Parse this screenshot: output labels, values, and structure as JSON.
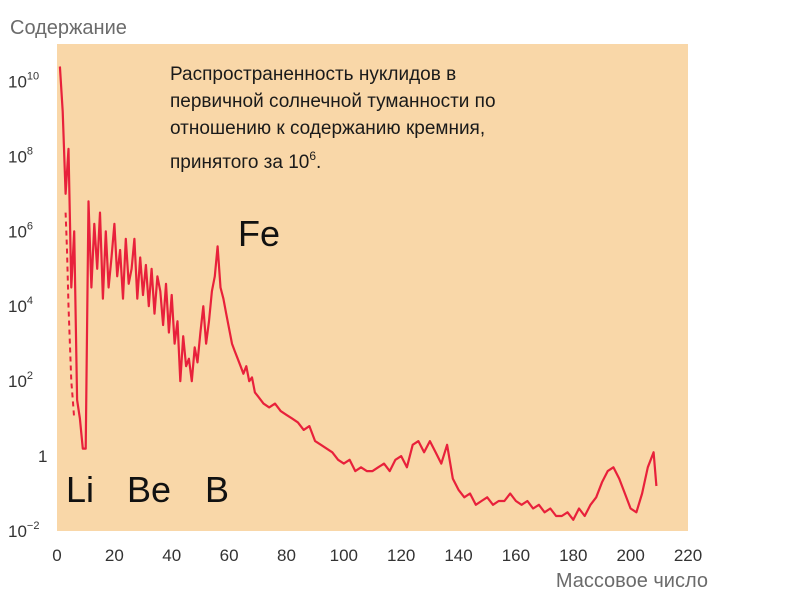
{
  "chart_data": {
    "type": "line",
    "title": "",
    "ylabel": "Содержание",
    "xlabel": "Массовое число",
    "x_ticks": [
      "0",
      "20",
      "40",
      "60",
      "80",
      "100",
      "120",
      "140",
      "160",
      "180",
      "200",
      "220"
    ],
    "y_ticks": [
      {
        "base": "10",
        "exp": "10"
      },
      {
        "base": "10",
        "exp": "8"
      },
      {
        "base": "10",
        "exp": "6"
      },
      {
        "base": "10",
        "exp": "4"
      },
      {
        "base": "10",
        "exp": "2"
      },
      {
        "base": "1",
        "exp": ""
      },
      {
        "base": "10",
        "exp": "−2"
      }
    ],
    "xlim": [
      0,
      220
    ],
    "ylim_log10": [
      -2,
      11
    ],
    "y_scale": "log",
    "grid": false,
    "annotation": {
      "lines": [
        "Распространенность нуклидов в",
        "первичной солнечной туманности по",
        "отношению к содержанию кремния,"
      ],
      "last_line_text": "принятого за 10",
      "last_line_exp": "6",
      "last_line_end": "."
    },
    "element_labels": {
      "fe": "Fe",
      "li": "Li",
      "be": "Be",
      "b": "B"
    },
    "series": [
      {
        "x": [
          1,
          2,
          3,
          4,
          5,
          6,
          7,
          8,
          9,
          10,
          11,
          12,
          13,
          14,
          15,
          16,
          17,
          18,
          19,
          20,
          21,
          22,
          23,
          24,
          25,
          26,
          27,
          28,
          29,
          30,
          31,
          32,
          33,
          34,
          35,
          36,
          37,
          38,
          39,
          40,
          41,
          42,
          43,
          44,
          45,
          46,
          47,
          48,
          49,
          50,
          51,
          52,
          53,
          54,
          55,
          56,
          57,
          58,
          59,
          60,
          61,
          62,
          63,
          64,
          65,
          66,
          67,
          68,
          69,
          70,
          72,
          74,
          76,
          78,
          80,
          82,
          84,
          86,
          88,
          90,
          92,
          94,
          96,
          98,
          100,
          102,
          104,
          106,
          108,
          110,
          112,
          114,
          116,
          118,
          120,
          122,
          124,
          126,
          128,
          130,
          132,
          134,
          136,
          138,
          140,
          142,
          144,
          146,
          148,
          150,
          152,
          154,
          156,
          158,
          160,
          162,
          164,
          166,
          168,
          170,
          172,
          174,
          176,
          178,
          180,
          182,
          184,
          186,
          188,
          190,
          192,
          194,
          196,
          198,
          200,
          202,
          204,
          206,
          208,
          209
        ],
        "log10_y": [
          10.4,
          9.2,
          7.0,
          8.2,
          4.5,
          6.0,
          1.5,
          1.0,
          0.2,
          0.2,
          6.8,
          4.5,
          6.2,
          5.0,
          6.5,
          4.2,
          6.0,
          4.5,
          5.3,
          6.2,
          4.8,
          5.5,
          4.2,
          5.8,
          4.6,
          5.0,
          5.8,
          4.2,
          5.3,
          4.3,
          5.1,
          4.0,
          5.0,
          3.8,
          4.8,
          4.4,
          3.5,
          4.6,
          3.3,
          4.3,
          3.0,
          3.6,
          2.0,
          3.2,
          2.4,
          2.6,
          2.0,
          2.9,
          2.5,
          3.3,
          4.0,
          3.0,
          3.6,
          4.4,
          4.8,
          5.6,
          4.5,
          4.2,
          3.8,
          3.4,
          3.0,
          2.8,
          2.6,
          2.4,
          2.2,
          2.4,
          2.0,
          2.1,
          1.7,
          1.6,
          1.4,
          1.3,
          1.4,
          1.2,
          1.1,
          1.0,
          0.9,
          0.7,
          0.8,
          0.4,
          0.3,
          0.2,
          0.1,
          -0.1,
          -0.2,
          -0.1,
          -0.4,
          -0.3,
          -0.4,
          -0.4,
          -0.3,
          -0.2,
          -0.4,
          -0.1,
          0.0,
          -0.3,
          0.3,
          0.4,
          0.1,
          0.4,
          0.1,
          -0.2,
          0.3,
          -0.6,
          -0.9,
          -1.1,
          -1.0,
          -1.3,
          -1.2,
          -1.1,
          -1.3,
          -1.2,
          -1.2,
          -1.0,
          -1.2,
          -1.3,
          -1.2,
          -1.4,
          -1.3,
          -1.5,
          -1.4,
          -1.6,
          -1.6,
          -1.5,
          -1.7,
          -1.4,
          -1.6,
          -1.3,
          -1.1,
          -0.7,
          -0.4,
          -0.3,
          -0.6,
          -1.0,
          -1.4,
          -1.5,
          -1.0,
          -0.3,
          0.1,
          -0.8
        ]
      }
    ],
    "dashed_segment": {
      "x": [
        3,
        3.5,
        4,
        4.5,
        5,
        5.5,
        6
      ],
      "log10_y": [
        6.5,
        5.5,
        4.0,
        3.0,
        2.0,
        1.5,
        1.0
      ]
    }
  },
  "colors": {
    "plot_bg": "#f9d7a8",
    "line": "#e8213b",
    "axis_text": "#6b6b6b"
  }
}
